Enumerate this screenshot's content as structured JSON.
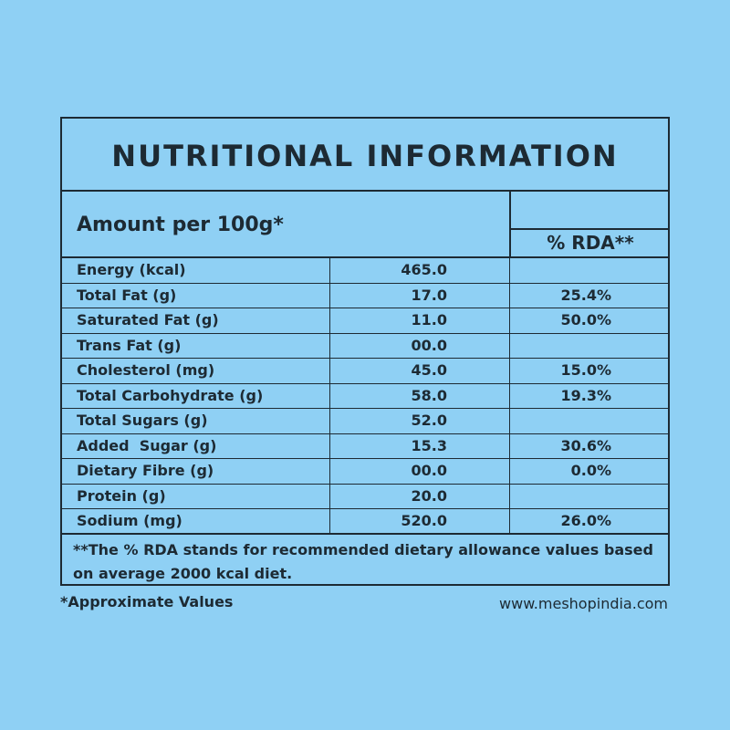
{
  "title": "NUTRITIONAL INFORMATION",
  "header": {
    "amount_label": "Amount per 100g*",
    "rda_label": "% RDA**"
  },
  "rows": [
    {
      "name": "Energy (kcal)",
      "value": "465.0",
      "rda": ""
    },
    {
      "name": "Total Fat (g)",
      "value": "17.0",
      "rda": "25.4%"
    },
    {
      "name": "Saturated Fat (g)",
      "value": "11.0",
      "rda": "50.0%"
    },
    {
      "name": "Trans Fat (g)",
      "value": "00.0",
      "rda": ""
    },
    {
      "name": "Cholesterol (mg)",
      "value": "45.0",
      "rda": "15.0%"
    },
    {
      "name": "Total Carbohydrate (g)",
      "value": "58.0",
      "rda": "19.3%"
    },
    {
      "name": "Total Sugars (g)",
      "value": "52.0",
      "rda": ""
    },
    {
      "name": "Added  Sugar (g)",
      "value": "15.3",
      "rda": "30.6%"
    },
    {
      "name": "Dietary Fibre (g)",
      "value": "00.0",
      "rda": "0.0%"
    },
    {
      "name": "Protein (g)",
      "value": "20.0",
      "rda": ""
    },
    {
      "name": "Sodium (mg)",
      "value": "520.0",
      "rda": "26.0%"
    }
  ],
  "footnote": "**The % RDA stands for recommended dietary allowance values based on average 2000 kcal diet.",
  "approx_note": "*Approximate Values",
  "website": "www.meshopindia.com",
  "colors": {
    "background": "#8fd0f4",
    "ink": "#1d2a33"
  }
}
